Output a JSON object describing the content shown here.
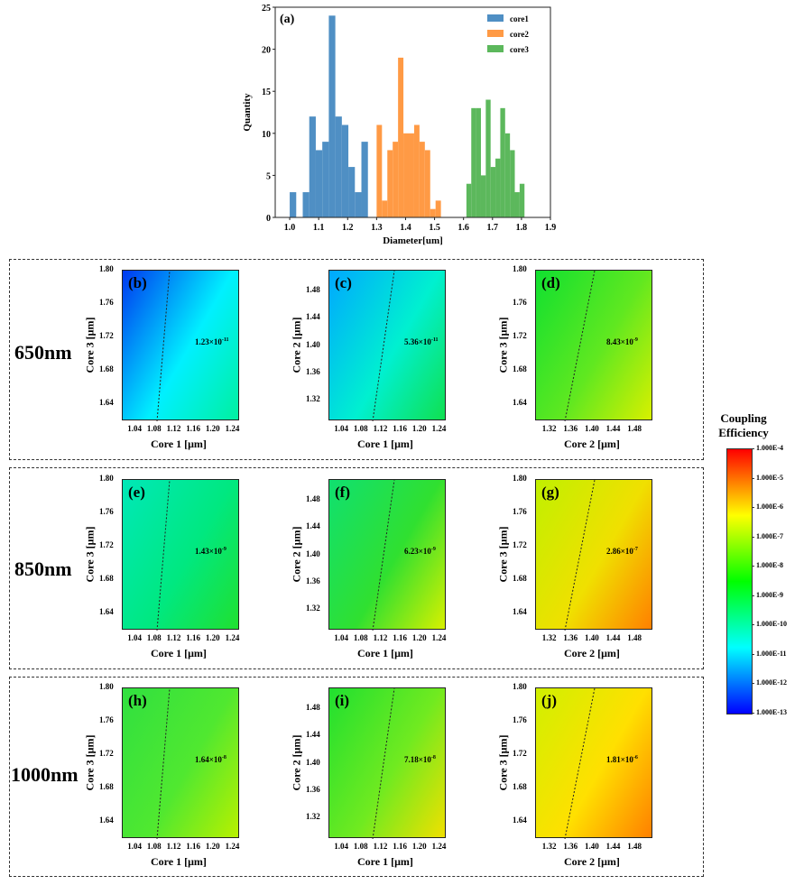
{
  "chart_data": [
    {
      "type": "bar",
      "subtype": "histogram",
      "label": "(a)",
      "xlabel": "Diameter[um]",
      "ylabel": "Quantity",
      "xlim": [
        0.95,
        1.9
      ],
      "ylim": [
        0,
        25
      ],
      "xticks": [
        "1.0",
        "1.1",
        "1.2",
        "1.3",
        "1.4",
        "1.5",
        "1.6",
        "1.7",
        "1.8",
        "1.9"
      ],
      "yticks": [
        "0",
        "5",
        "10",
        "15",
        "20",
        "25"
      ],
      "legend_position": "top-right",
      "series": [
        {
          "name": "core1",
          "color": "#4f8fc4",
          "bin_start": 1.0,
          "bin_width": 0.0225,
          "values": [
            3,
            0,
            3,
            12,
            8,
            9,
            24,
            12,
            11,
            6,
            3,
            9
          ]
        },
        {
          "name": "core2",
          "color": "#ff9a45",
          "bin_start": 1.3,
          "bin_width": 0.0185,
          "values": [
            11,
            2,
            8,
            9,
            19,
            10,
            10,
            11,
            9,
            8,
            1,
            2
          ]
        },
        {
          "name": "core3",
          "color": "#5cb85c",
          "bin_start": 1.61,
          "bin_width": 0.0167,
          "values": [
            4,
            13,
            13,
            5,
            14,
            6,
            7,
            13,
            10,
            8,
            3,
            4
          ]
        }
      ]
    },
    {
      "type": "heatmap",
      "colorbar": {
        "title": "Coupling Efficiency",
        "ticks": [
          "1.000E-4",
          "1.000E-5",
          "1.000E-6",
          "1.000E-7",
          "1.000E-8",
          "1.000E-9",
          "1.000E-10",
          "1.000E-11",
          "1.000E-12",
          "1.000E-13"
        ],
        "colors": [
          "#ff0000",
          "#ff8000",
          "#ffff00",
          "#80ff00",
          "#00ff00",
          "#00ff80",
          "#00ffff",
          "#0080ff",
          "#0000ff"
        ]
      },
      "rows": [
        "650nm",
        "850nm",
        "1000nm"
      ],
      "panels": [
        {
          "label": "(b)",
          "row": 0,
          "col": 0,
          "xlabel": "Core 1 [μm]",
          "ylabel": "Core 3 [μm]",
          "contour": "1.23×10",
          "exp": "-11",
          "c1": "#0038f0",
          "c2": "#00f0ff",
          "c3": "#00f0a0"
        },
        {
          "label": "(c)",
          "row": 0,
          "col": 1,
          "xlabel": "Core 1 [μm]",
          "ylabel": "Core 2 [μm]",
          "contour": "5.36×10",
          "exp": "-11",
          "c1": "#00a8ff",
          "c2": "#00f0d0",
          "c3": "#10e050"
        },
        {
          "label": "(d)",
          "row": 0,
          "col": 2,
          "xlabel": "Core 2 [μm]",
          "ylabel": "Core 3 [μm]",
          "contour": "8.43×10",
          "exp": "-9",
          "c1": "#10e030",
          "c2": "#60e820",
          "c3": "#d8f000"
        },
        {
          "label": "(e)",
          "row": 1,
          "col": 0,
          "xlabel": "Core 1 [μm]",
          "ylabel": "Core 3 [μm]",
          "contour": "1.43×10",
          "exp": "-9",
          "c1": "#00e8b8",
          "c2": "#00e880",
          "c3": "#20e030"
        },
        {
          "label": "(f)",
          "row": 1,
          "col": 1,
          "xlabel": "Core 1 [μm]",
          "ylabel": "Core 2 [μm]",
          "contour": "6.23×10",
          "exp": "-9",
          "c1": "#10e070",
          "c2": "#30e030",
          "c3": "#d8f000"
        },
        {
          "label": "(g)",
          "row": 1,
          "col": 2,
          "xlabel": "Core 2 [μm]",
          "ylabel": "Core 3 [μm]",
          "contour": "2.86×10",
          "exp": "-7",
          "c1": "#c0f000",
          "c2": "#f0e000",
          "c3": "#ff8000"
        },
        {
          "label": "(h)",
          "row": 2,
          "col": 0,
          "xlabel": "Core 1 [μm]",
          "ylabel": "Core 3 [μm]",
          "contour": "1.64×10",
          "exp": "-8",
          "c1": "#30e040",
          "c2": "#50e830",
          "c3": "#b8f000"
        },
        {
          "label": "(i)",
          "row": 2,
          "col": 1,
          "xlabel": "Core 1 [μm]",
          "ylabel": "Core 2 [μm]",
          "contour": "7.18×10",
          "exp": "-8",
          "c1": "#20e030",
          "c2": "#70ea20",
          "c3": "#f0e000"
        },
        {
          "label": "(j)",
          "row": 2,
          "col": 2,
          "xlabel": "Core 2 [μm]",
          "ylabel": "Core 3 [μm]",
          "contour": "1.81×10",
          "exp": "-6",
          "c1": "#d0f000",
          "c2": "#ffe000",
          "c3": "#ff8000"
        }
      ],
      "axes": {
        "core1": {
          "ticks": [
            "1.04",
            "1.08",
            "1.12",
            "1.16",
            "1.20",
            "1.24"
          ]
        },
        "core2": {
          "ticks": [
            "1.32",
            "1.36",
            "1.40",
            "1.44",
            "1.48"
          ]
        },
        "core3": {
          "ticks": [
            "1.64",
            "1.68",
            "1.72",
            "1.76",
            "1.80"
          ]
        }
      }
    }
  ]
}
